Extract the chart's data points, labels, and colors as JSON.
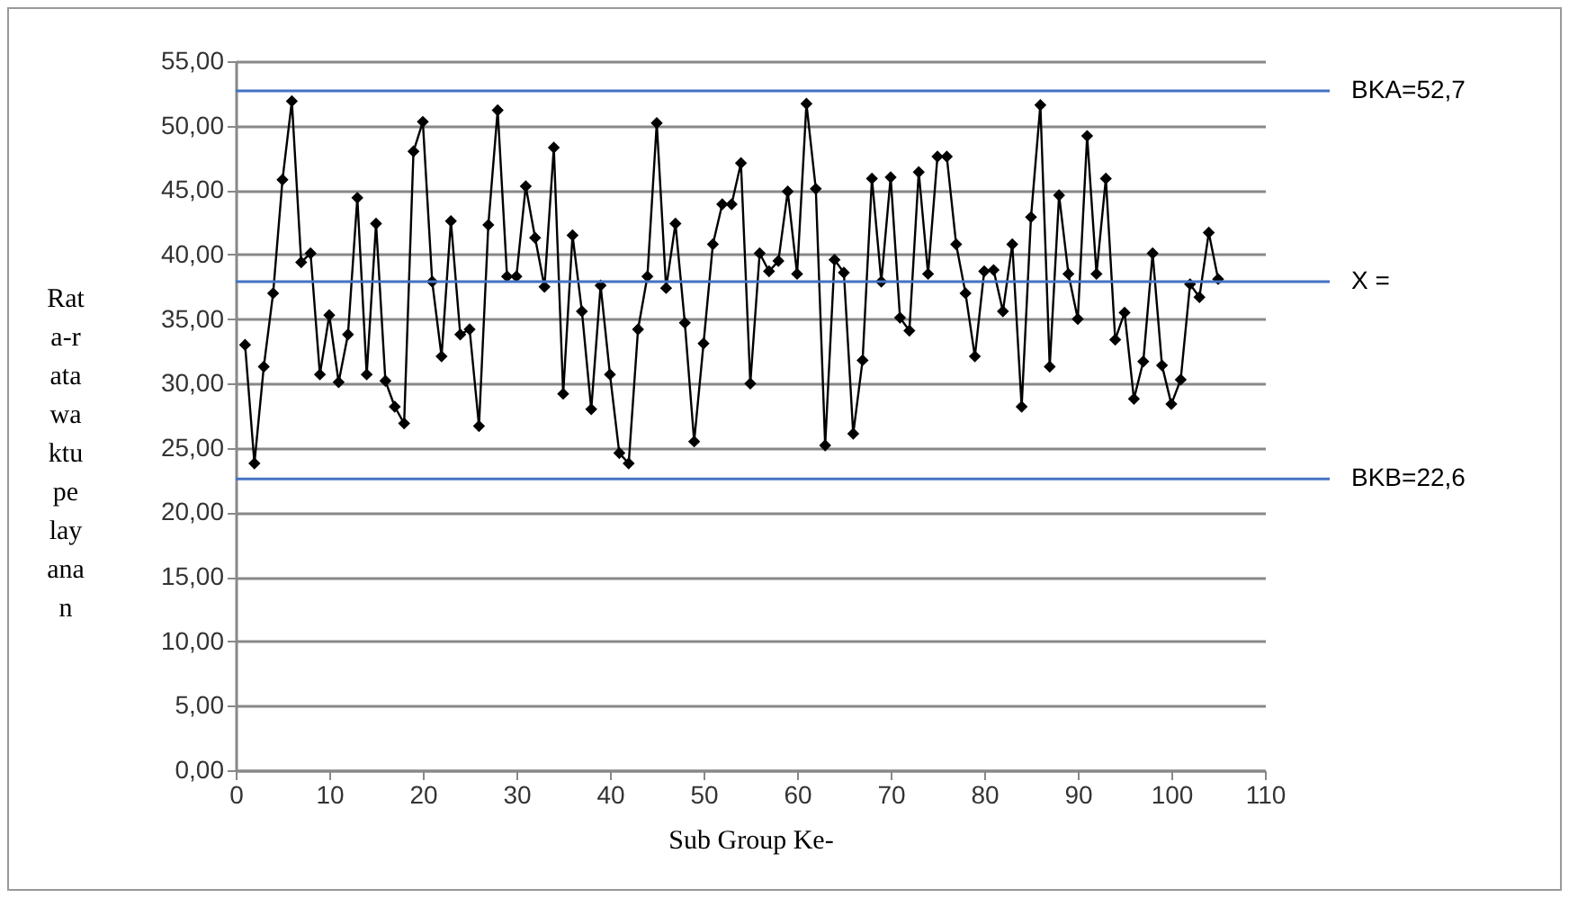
{
  "chart_data": {
    "type": "line",
    "xlabel": "Sub Group Ke-",
    "ylabel": "Rata-rata waktu pelayanan",
    "x": [
      1,
      2,
      3,
      4,
      5,
      6,
      7,
      8,
      9,
      10,
      11,
      12,
      13,
      14,
      15,
      16,
      17,
      18,
      19,
      20,
      21,
      22,
      23,
      24,
      25,
      26,
      27,
      28,
      29,
      30,
      31,
      32,
      33,
      34,
      35,
      36,
      37,
      38,
      39,
      40,
      41,
      42,
      43,
      44,
      45,
      46,
      47,
      48,
      49,
      50,
      51,
      52,
      53,
      54,
      55,
      56,
      57,
      58,
      59,
      60,
      61,
      62,
      63,
      64,
      65,
      66,
      67,
      68,
      69,
      70,
      71,
      72,
      73,
      74,
      75,
      76,
      77,
      78,
      79,
      80,
      81,
      82,
      83,
      84,
      85,
      86,
      87,
      88,
      89,
      90,
      91,
      92,
      93,
      94,
      95,
      96,
      97,
      98,
      99,
      100,
      101,
      102,
      103,
      104,
      105
    ],
    "series": [
      {
        "color": "#000000",
        "values": [
          33.0,
          23.8,
          31.3,
          37.0,
          45.8,
          51.9,
          39.4,
          40.1,
          30.7,
          35.3,
          30.1,
          33.8,
          44.4,
          30.7,
          42.4,
          30.2,
          28.2,
          26.9,
          48.0,
          50.3,
          37.9,
          32.1,
          42.6,
          33.8,
          34.2,
          26.7,
          42.3,
          51.2,
          38.3,
          38.3,
          45.3,
          41.3,
          37.5,
          48.3,
          29.2,
          41.5,
          35.6,
          28.0,
          37.6,
          30.7,
          24.6,
          23.8,
          34.2,
          38.3,
          50.2,
          37.4,
          42.4,
          34.7,
          25.5,
          33.1,
          40.8,
          43.9,
          43.9,
          47.1,
          30.0,
          40.1,
          38.7,
          39.5,
          44.9,
          38.5,
          51.7,
          45.1,
          25.2,
          39.6,
          38.6,
          26.1,
          31.8,
          45.9,
          37.9,
          46.0,
          35.1,
          34.1,
          46.4,
          38.5,
          47.6,
          47.6,
          40.8,
          37.0,
          32.1,
          38.7,
          38.8,
          35.6,
          40.8,
          28.2,
          42.9,
          51.6,
          31.3,
          44.6,
          38.5,
          35.0,
          49.2,
          38.5,
          45.9,
          33.4,
          35.5,
          28.8,
          31.7,
          40.1,
          31.4,
          28.4,
          30.3,
          37.7,
          36.7,
          41.7,
          38.1
        ]
      }
    ],
    "xlim": [
      0,
      110
    ],
    "xticks": [
      0,
      10,
      20,
      30,
      40,
      50,
      60,
      70,
      80,
      90,
      100,
      110
    ],
    "ylim": [
      0,
      55
    ],
    "yticks": [
      {
        "value": 0,
        "label": "0,00"
      },
      {
        "value": 5,
        "label": "5,00"
      },
      {
        "value": 10,
        "label": "10,00"
      },
      {
        "value": 15,
        "label": "15,00"
      },
      {
        "value": 20,
        "label": "20,00"
      },
      {
        "value": 25,
        "label": "25,00"
      },
      {
        "value": 30,
        "label": "30,00"
      },
      {
        "value": 35,
        "label": "35,00"
      },
      {
        "value": 40,
        "label": "40,00"
      },
      {
        "value": 45,
        "label": "45,00"
      },
      {
        "value": 50,
        "label": "50,00"
      },
      {
        "value": 55,
        "label": "55,00"
      }
    ],
    "ref_lines": [
      {
        "axis": "y",
        "value": 52.7,
        "label": "BKA=52,7",
        "color": "#4472c4"
      },
      {
        "axis": "y",
        "value": 37.9,
        "label": "X =",
        "color": "#4472c4"
      },
      {
        "axis": "y",
        "value": 22.6,
        "label": "BKB=22,6",
        "color": "#4472c4"
      }
    ],
    "grid": "y",
    "marker": "diamond",
    "line_style": "solid"
  }
}
